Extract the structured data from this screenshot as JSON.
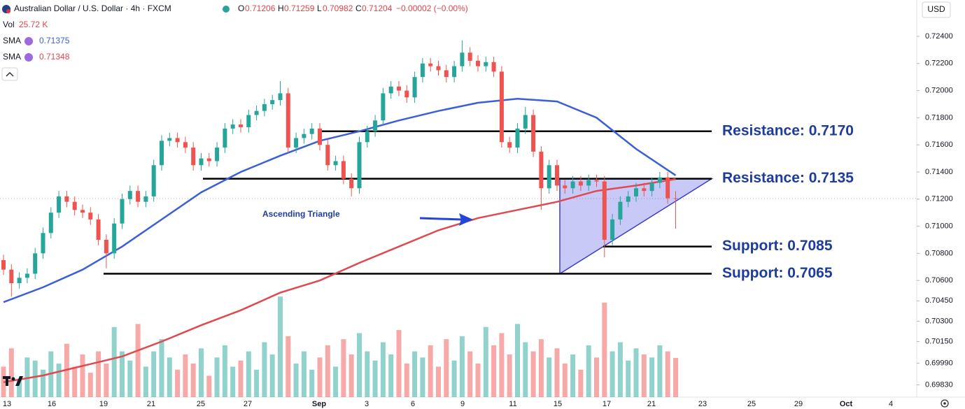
{
  "header": {
    "symbol": "Australian Dollar / U.S. Dollar · 4h · FXCM",
    "open_label": "O",
    "high_label": "H",
    "low_label": "L",
    "close_label": "C",
    "change": "−0.00002 (−0.00%)",
    "volume_name": "Vol",
    "volume": "25.72 K",
    "currency": "USD"
  },
  "chart_data": {
    "type": "candlestick",
    "ylim": [
      0.6974,
      0.72668
    ],
    "yticks": [
      {
        "value": 0.724,
        "label": "0.72400"
      },
      {
        "value": 0.722,
        "label": "0.72200"
      },
      {
        "value": 0.72,
        "label": "0.72000"
      },
      {
        "value": 0.718,
        "label": "0.71800"
      },
      {
        "value": 0.716,
        "label": "0.71600"
      },
      {
        "value": 0.714,
        "label": "0.71400"
      },
      {
        "value": 0.712,
        "label": "0.71200"
      },
      {
        "value": 0.71,
        "label": "0.71000"
      },
      {
        "value": 0.708,
        "label": "0.70800"
      },
      {
        "value": 0.706,
        "label": "0.70600"
      },
      {
        "value": 0.7045,
        "label": "0.70450"
      },
      {
        "value": 0.703,
        "label": "0.70300"
      },
      {
        "value": 0.7015,
        "label": "0.70150"
      },
      {
        "value": 0.6999,
        "label": "0.69990"
      },
      {
        "value": 0.6983,
        "label": "0.69830"
      }
    ],
    "x_labels": [
      "13",
      "16",
      "19",
      "21",
      "25",
      "27",
      "Sep",
      "3",
      "6",
      "9",
      "11",
      "15",
      "17",
      "21",
      "23",
      "25",
      "29",
      "Oct",
      "4"
    ],
    "up_color": "#26a69a",
    "down_color": "#ef5350",
    "open": [
      0.7075,
      0.7068,
      0.7058,
      0.7062,
      0.7065,
      0.708,
      0.7095,
      0.711,
      0.7122,
      0.7118,
      0.7112,
      0.711,
      0.7105,
      0.709,
      0.708,
      0.7102,
      0.712,
      0.7126,
      0.7118,
      0.7122,
      0.7145,
      0.7163,
      0.7165,
      0.7162,
      0.7158,
      0.7145,
      0.715,
      0.7148,
      0.7158,
      0.7172,
      0.7175,
      0.7173,
      0.7182,
      0.7185,
      0.719,
      0.7193,
      0.7198,
      0.7158,
      0.7165,
      0.7168,
      0.7172,
      0.716,
      0.7145,
      0.7148,
      0.7135,
      0.7128,
      0.7162,
      0.717,
      0.7178,
      0.7198,
      0.7203,
      0.72,
      0.7195,
      0.721,
      0.722,
      0.7218,
      0.7215,
      0.721,
      0.7218,
      0.7228,
      0.7222,
      0.7218,
      0.7221,
      0.7214,
      0.7162,
      0.7158,
      0.7172,
      0.7182,
      0.7155,
      0.7128,
      0.7145,
      0.713,
      0.7128,
      0.7133,
      0.713,
      0.7134,
      0.7133,
      0.709,
      0.7105,
      0.7118,
      0.7122,
      0.7128,
      0.7126,
      0.7132,
      0.7136,
      0.71206
    ],
    "high": [
      0.7079,
      0.7072,
      0.7066,
      0.7069,
      0.7084,
      0.7099,
      0.7114,
      0.7126,
      0.7126,
      0.7122,
      0.7116,
      0.7114,
      0.7109,
      0.7094,
      0.7106,
      0.7124,
      0.713,
      0.713,
      0.7126,
      0.7149,
      0.7167,
      0.7169,
      0.7169,
      0.7166,
      0.7162,
      0.7154,
      0.7154,
      0.7162,
      0.7176,
      0.7179,
      0.7179,
      0.7186,
      0.7189,
      0.7194,
      0.7197,
      0.7207,
      0.7202,
      0.7169,
      0.7172,
      0.7176,
      0.7176,
      0.7164,
      0.7152,
      0.7152,
      0.7139,
      0.7166,
      0.7174,
      0.7182,
      0.7202,
      0.7207,
      0.7207,
      0.7204,
      0.7214,
      0.7224,
      0.7224,
      0.7222,
      0.7219,
      0.7222,
      0.7237,
      0.7232,
      0.7226,
      0.7225,
      0.7225,
      0.7218,
      0.7166,
      0.7176,
      0.7188,
      0.7186,
      0.7159,
      0.7149,
      0.7149,
      0.7134,
      0.7137,
      0.7137,
      0.7138,
      0.7138,
      0.7137,
      0.7109,
      0.7122,
      0.7126,
      0.7132,
      0.7132,
      0.7136,
      0.714,
      0.714,
      0.71259
    ],
    "low": [
      0.7064,
      0.7048,
      0.7054,
      0.7058,
      0.7061,
      0.7076,
      0.7091,
      0.7106,
      0.7114,
      0.7108,
      0.7106,
      0.7101,
      0.7086,
      0.7069,
      0.7076,
      0.7098,
      0.7116,
      0.7114,
      0.7114,
      0.7118,
      0.7141,
      0.7159,
      0.7158,
      0.7154,
      0.7141,
      0.7141,
      0.7144,
      0.7144,
      0.7154,
      0.7168,
      0.7169,
      0.7169,
      0.7178,
      0.7181,
      0.7186,
      0.7189,
      0.7154,
      0.7154,
      0.7161,
      0.7164,
      0.7156,
      0.7141,
      0.7141,
      0.7131,
      0.7122,
      0.7124,
      0.7158,
      0.7166,
      0.7174,
      0.7194,
      0.7196,
      0.7191,
      0.7191,
      0.7206,
      0.7214,
      0.7211,
      0.7206,
      0.7206,
      0.7214,
      0.7218,
      0.7214,
      0.7214,
      0.721,
      0.7158,
      0.7154,
      0.7154,
      0.7168,
      0.7151,
      0.7112,
      0.7124,
      0.7126,
      0.7124,
      0.7124,
      0.7126,
      0.7126,
      0.7129,
      0.7077,
      0.7086,
      0.7101,
      0.7114,
      0.7118,
      0.7122,
      0.7122,
      0.7128,
      0.71166,
      0.70982
    ],
    "close": [
      0.7068,
      0.7058,
      0.7062,
      0.7065,
      0.708,
      0.7095,
      0.711,
      0.7122,
      0.7118,
      0.7112,
      0.711,
      0.7105,
      0.709,
      0.708,
      0.7102,
      0.712,
      0.7126,
      0.7118,
      0.7122,
      0.7145,
      0.7163,
      0.7165,
      0.7162,
      0.7158,
      0.7145,
      0.715,
      0.7148,
      0.7158,
      0.7172,
      0.7175,
      0.7173,
      0.7182,
      0.7185,
      0.719,
      0.7193,
      0.7198,
      0.7158,
      0.7165,
      0.7168,
      0.7172,
      0.716,
      0.7145,
      0.7148,
      0.7135,
      0.7128,
      0.7162,
      0.717,
      0.7178,
      0.7198,
      0.7203,
      0.72,
      0.7195,
      0.721,
      0.722,
      0.7218,
      0.7215,
      0.721,
      0.7218,
      0.7228,
      0.7222,
      0.7218,
      0.7221,
      0.7214,
      0.7162,
      0.7158,
      0.7172,
      0.7182,
      0.7155,
      0.7128,
      0.7145,
      0.713,
      0.7128,
      0.7133,
      0.713,
      0.7134,
      0.7133,
      0.709,
      0.7105,
      0.7118,
      0.7122,
      0.7128,
      0.7126,
      0.7132,
      0.7136,
      0.71206,
      0.71204
    ],
    "volume": [
      20,
      32,
      12,
      26,
      24,
      18,
      30,
      22,
      35,
      20,
      28,
      16,
      30,
      22,
      46,
      30,
      24,
      48,
      20,
      30,
      38,
      26,
      18,
      28,
      22,
      32,
      14,
      26,
      34,
      20,
      24,
      30,
      18,
      36,
      28,
      66,
      40,
      22,
      30,
      18,
      26,
      34,
      20,
      38,
      28,
      42,
      30,
      24,
      36,
      28,
      44,
      22,
      30,
      26,
      34,
      20,
      38,
      24,
      40,
      30,
      22,
      46,
      34,
      42,
      28,
      48,
      36,
      30,
      38,
      26,
      32,
      22,
      28,
      18,
      34,
      26,
      62,
      30,
      36,
      24,
      32,
      28,
      26,
      34,
      30,
      25.72
    ],
    "series": [
      {
        "name": "SMA",
        "color": "#3b5fd6",
        "x": [
          0,
          5,
          10,
          15,
          20,
          25,
          30,
          35,
          40,
          45,
          50,
          55,
          60,
          65,
          70,
          75,
          80,
          85
        ],
        "values": [
          0.7044,
          0.7055,
          0.7068,
          0.7085,
          0.7105,
          0.7125,
          0.714,
          0.7152,
          0.7163,
          0.717,
          0.7178,
          0.7185,
          0.7191,
          0.7194,
          0.7192,
          0.718,
          0.7157,
          0.71375
        ]
      },
      {
        "name": "SMA",
        "color": "#df4a50",
        "x": [
          0,
          5,
          10,
          15,
          20,
          25,
          30,
          35,
          40,
          45,
          50,
          55,
          60,
          65,
          70,
          75,
          80,
          85
        ],
        "values": [
          0.6985,
          0.699,
          0.6997,
          0.7004,
          0.7015,
          0.7027,
          0.7038,
          0.7051,
          0.706,
          0.7073,
          0.7085,
          0.7097,
          0.7106,
          0.7112,
          0.7118,
          0.7126,
          0.713,
          0.71348
        ]
      }
    ],
    "annotations": [
      {
        "label": "Resistance: 0.7170",
        "value": 0.717
      },
      {
        "label": "Resistance: 0.7135",
        "value": 0.7135
      },
      {
        "label": "Support: 0.7085",
        "value": 0.7085
      },
      {
        "label": "Support: 0.7065",
        "value": 0.7065
      }
    ],
    "pattern_label": "Ascending Triangle"
  }
}
